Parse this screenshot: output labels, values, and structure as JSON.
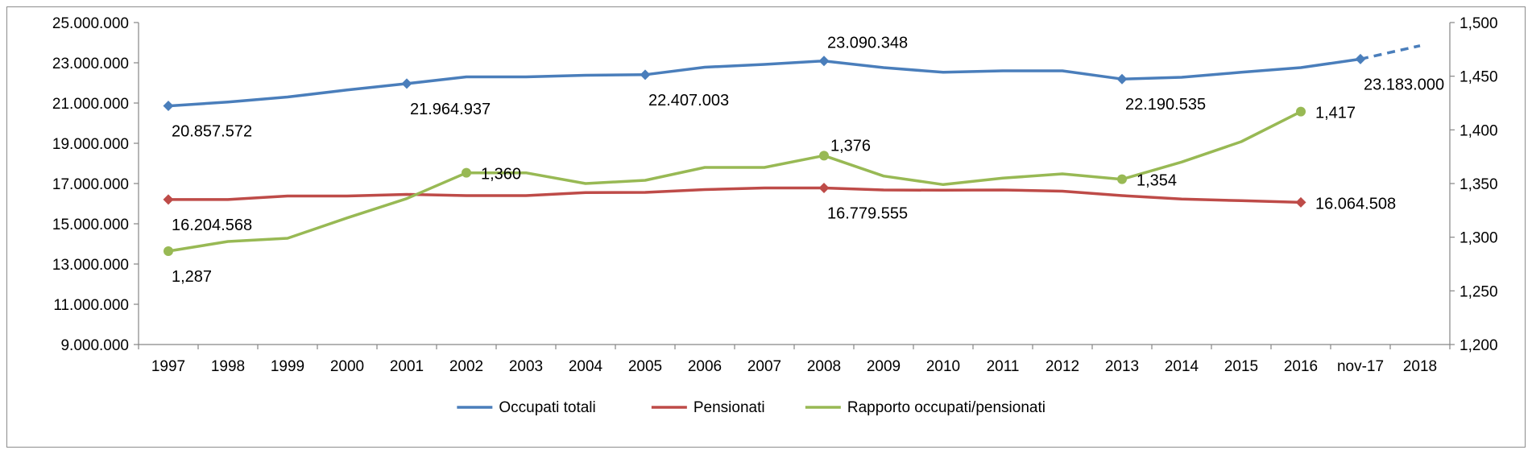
{
  "chart_data": {
    "type": "line",
    "categories": [
      "1997",
      "1998",
      "1999",
      "2000",
      "2001",
      "2002",
      "2003",
      "2004",
      "2005",
      "2006",
      "2007",
      "2008",
      "2009",
      "2010",
      "2011",
      "2012",
      "2013",
      "2014",
      "2015",
      "2016",
      "nov-17",
      "2018"
    ],
    "y_left": {
      "min": 9000000,
      "max": 25000000,
      "step": 2000000,
      "tick_labels": [
        "9.000.000",
        "11.000.000",
        "13.000.000",
        "15.000.000",
        "17.000.000",
        "19.000.000",
        "21.000.000",
        "23.000.000",
        "25.000.000"
      ]
    },
    "y_right": {
      "min": 1.2,
      "max": 1.5,
      "step": 0.05,
      "tick_labels": [
        "1,200",
        "1,250",
        "1,300",
        "1,350",
        "1,400",
        "1,450",
        "1,500"
      ]
    },
    "series": [
      {
        "name": "Occupati totali",
        "axis": "left",
        "color": "#4a7ebb",
        "values": [
          20857572,
          21050000,
          21300000,
          21650000,
          21964937,
          22300000,
          22300000,
          22380000,
          22407003,
          22780000,
          22920000,
          23090348,
          22760000,
          22530000,
          22600000,
          22600000,
          22190535,
          22280000,
          22530000,
          22760000,
          23183000,
          23850000
        ],
        "dashed_from_index": 20,
        "markers_at": [
          0,
          4,
          8,
          11,
          16,
          20
        ],
        "data_labels": [
          {
            "index": 0,
            "text": "20.857.572",
            "pos": "below"
          },
          {
            "index": 4,
            "text": "21.964.937",
            "pos": "below"
          },
          {
            "index": 8,
            "text": "22.407.003",
            "pos": "below"
          },
          {
            "index": 11,
            "text": "23.090.348",
            "pos": "above"
          },
          {
            "index": 16,
            "text": "22.190.535",
            "pos": "below"
          },
          {
            "index": 20,
            "text": "23.183.000",
            "pos": "below"
          }
        ]
      },
      {
        "name": "Pensionati",
        "axis": "left",
        "color": "#be4b48",
        "values": [
          16204568,
          16204568,
          16380000,
          16380000,
          16460000,
          16400000,
          16400000,
          16550000,
          16560000,
          16700000,
          16780000,
          16779555,
          16680000,
          16670000,
          16680000,
          16620000,
          16400000,
          16230000,
          16150000,
          16064508,
          null,
          null
        ],
        "markers_at": [
          0,
          11,
          19
        ],
        "data_labels": [
          {
            "index": 0,
            "text": "16.204.568",
            "pos": "below"
          },
          {
            "index": 11,
            "text": "16.779.555",
            "pos": "below"
          },
          {
            "index": 19,
            "text": "16.064.508",
            "pos": "right"
          }
        ]
      },
      {
        "name": "Rapporto occupati/pensionati",
        "axis": "right",
        "color": "#98b954",
        "values": [
          1.287,
          1.296,
          1.299,
          1.318,
          1.336,
          1.36,
          1.36,
          1.35,
          1.353,
          1.365,
          1.365,
          1.376,
          1.357,
          1.349,
          1.355,
          1.359,
          1.354,
          1.37,
          1.389,
          1.417,
          null,
          null
        ],
        "markers_at": [
          0,
          5,
          11,
          16,
          19
        ],
        "data_labels": [
          {
            "index": 0,
            "text": "1,287",
            "pos": "below"
          },
          {
            "index": 5,
            "text": "1,360",
            "pos": "right"
          },
          {
            "index": 11,
            "text": "1,376",
            "pos": "above-right"
          },
          {
            "index": 16,
            "text": "1,354",
            "pos": "right"
          },
          {
            "index": 19,
            "text": "1,417",
            "pos": "right"
          }
        ]
      }
    ],
    "legend": {
      "placement": "bottom"
    },
    "grid": false
  }
}
